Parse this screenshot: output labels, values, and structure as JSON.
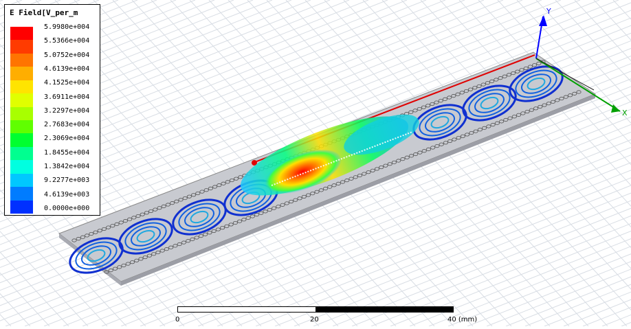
{
  "legend": {
    "title": "E Field[V_per_m",
    "labels": [
      "5.9980e+004",
      "5.5366e+004",
      "5.0752e+004",
      "4.6139e+004",
      "4.1525e+004",
      "3.6911e+004",
      "3.2297e+004",
      "2.7683e+004",
      "2.3069e+004",
      "1.8455e+004",
      "1.3842e+004",
      "9.2277e+003",
      "4.6139e+003",
      "0.0000e+000"
    ],
    "colors": [
      "#ff0000",
      "#ff3b00",
      "#ff7400",
      "#ffae00",
      "#ffe400",
      "#e0ff00",
      "#a8ff00",
      "#60ff00",
      "#00ff30",
      "#00ff90",
      "#00ffe0",
      "#00c8ff",
      "#007cff",
      "#0030ff"
    ]
  },
  "axes": {
    "y": "Y",
    "x": "X"
  },
  "scale_bar": {
    "labels": [
      "0",
      "20",
      "40 (mm)"
    ]
  },
  "colors": {
    "background": "#ffffff",
    "grid": "#d8dde4",
    "axis_y": "#0000ff",
    "axis_x": "#00a000",
    "edge_red": "#e00000"
  }
}
